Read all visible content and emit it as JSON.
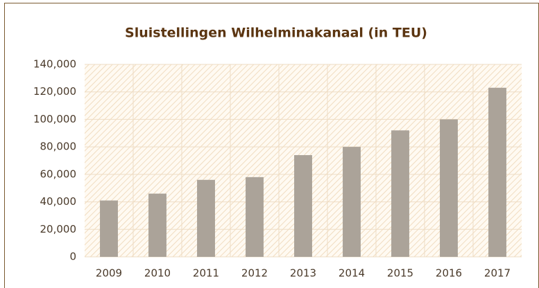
{
  "chart_data": {
    "type": "bar",
    "title": "Sluistellingen Wilhelminakanaal (in TEU)",
    "categories": [
      "2009",
      "2010",
      "2011",
      "2012",
      "2013",
      "2014",
      "2015",
      "2016",
      "2017"
    ],
    "values": [
      41000,
      46000,
      56000,
      58000,
      74000,
      80000,
      92000,
      100000,
      123000
    ],
    "color": "#aba399",
    "ylim": [
      0,
      140000
    ],
    "yticks": [
      {
        "value": 0,
        "label": "0"
      },
      {
        "value": 20000,
        "label": "20,000"
      },
      {
        "value": 40000,
        "label": "40,000"
      },
      {
        "value": 60000,
        "label": "60,000"
      },
      {
        "value": 80000,
        "label": "80,000"
      },
      {
        "value": 100000,
        "label": "100,000"
      },
      {
        "value": 120000,
        "label": "120,000"
      },
      {
        "value": 140000,
        "label": "140,000"
      }
    ],
    "grid": true
  }
}
